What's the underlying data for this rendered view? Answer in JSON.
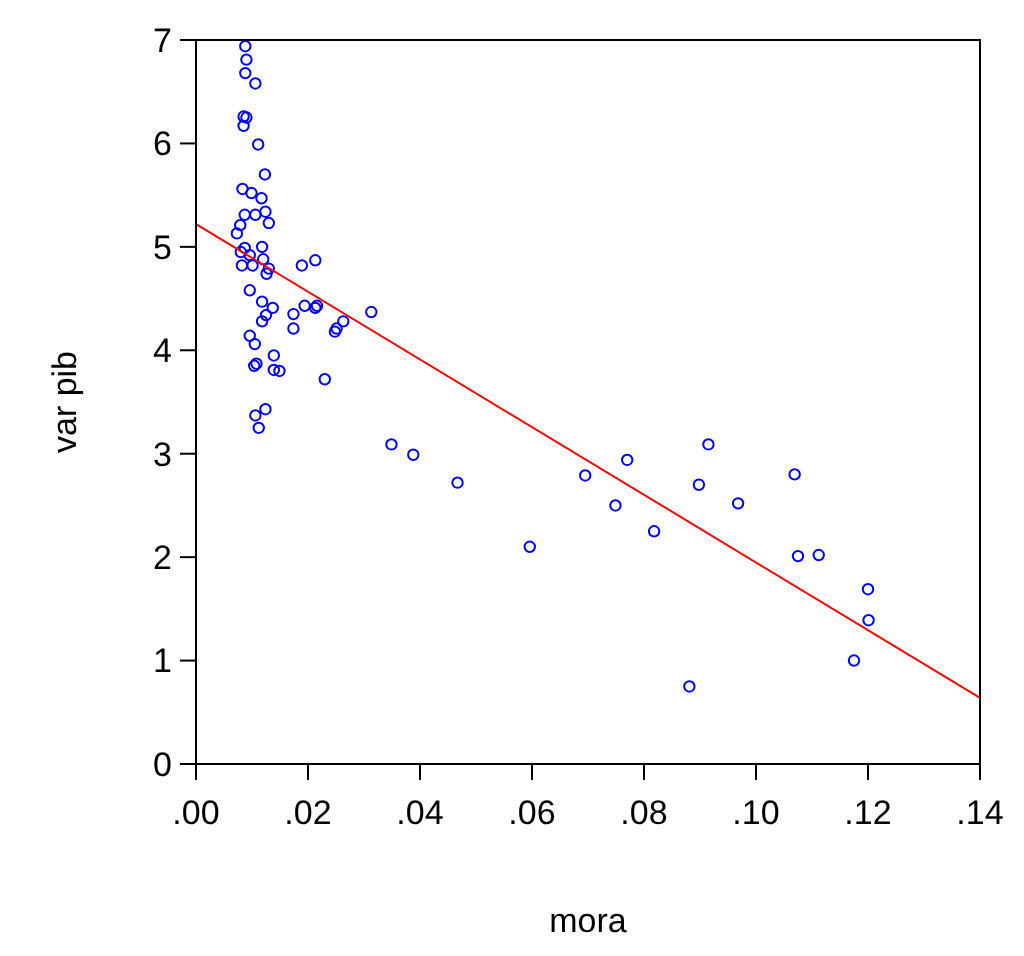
{
  "chart_data": {
    "type": "scatter",
    "xlabel": "mora",
    "ylabel": "var pib",
    "xlim": [
      0,
      0.14
    ],
    "ylim": [
      0,
      7
    ],
    "xticks": [
      {
        "value": 0,
        "label": ".00"
      },
      {
        "value": 0.02,
        "label": ".02"
      },
      {
        "value": 0.04,
        "label": ".04"
      },
      {
        "value": 0.06,
        "label": ".06"
      },
      {
        "value": 0.08,
        "label": ".08"
      },
      {
        "value": 0.1,
        "label": ".10"
      },
      {
        "value": 0.12,
        "label": ".12"
      },
      {
        "value": 0.14,
        "label": ".14"
      }
    ],
    "yticks": [
      0,
      1,
      2,
      3,
      4,
      5,
      6,
      7
    ],
    "grid": false,
    "series": [
      {
        "marker": "circle",
        "color": "#0000ff",
        "x": [
          0.0088,
          0.009,
          0.0088,
          0.0106,
          0.0085,
          0.009,
          0.0085,
          0.0111,
          0.0123,
          0.0083,
          0.0099,
          0.0117,
          0.0087,
          0.0106,
          0.0124,
          0.013,
          0.0079,
          0.0073,
          0.0118,
          0.0087,
          0.008,
          0.0096,
          0.012,
          0.0213,
          0.0082,
          0.0101,
          0.013,
          0.0126,
          0.0189,
          0.0096,
          0.0118,
          0.0137,
          0.0125,
          0.0118,
          0.0174,
          0.0174,
          0.0194,
          0.0213,
          0.0216,
          0.0313,
          0.0248,
          0.0251,
          0.0263,
          0.0096,
          0.0105,
          0.0139,
          0.0104,
          0.0108,
          0.0139,
          0.0149,
          0.023,
          0.0124,
          0.0106,
          0.0112,
          0.0349,
          0.0388,
          0.0467,
          0.0596,
          0.0695,
          0.0749,
          0.077,
          0.0818,
          0.0915,
          0.0898,
          0.0968,
          0.0881,
          0.1069,
          0.1075,
          0.1112,
          0.12,
          0.1201,
          0.1175
        ],
        "values": [
          6.94,
          6.81,
          6.68,
          6.58,
          6.26,
          6.25,
          6.17,
          5.99,
          5.7,
          5.56,
          5.52,
          5.47,
          5.31,
          5.31,
          5.34,
          5.23,
          5.21,
          5.13,
          5.0,
          4.99,
          4.95,
          4.92,
          4.88,
          4.87,
          4.82,
          4.82,
          4.79,
          4.74,
          4.82,
          4.58,
          4.47,
          4.41,
          4.34,
          4.28,
          4.35,
          4.21,
          4.43,
          4.41,
          4.43,
          4.37,
          4.18,
          4.21,
          4.28,
          4.14,
          4.06,
          3.95,
          3.85,
          3.87,
          3.81,
          3.8,
          3.72,
          3.43,
          3.37,
          3.25,
          3.09,
          2.99,
          2.72,
          2.1,
          2.79,
          2.5,
          2.94,
          2.25,
          3.09,
          2.7,
          2.52,
          0.75,
          2.8,
          2.01,
          2.02,
          1.69,
          1.39,
          1.0
        ]
      },
      {
        "type": "line",
        "marker": "none",
        "color": "#ff0000",
        "x": [
          0,
          0.14
        ],
        "values": [
          5.22,
          0.64
        ]
      }
    ]
  }
}
